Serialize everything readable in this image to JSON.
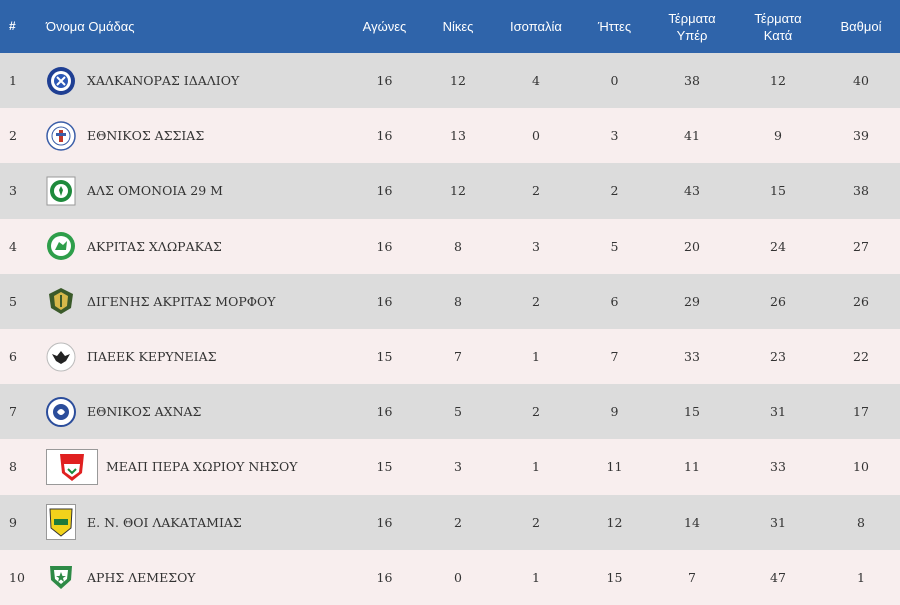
{
  "table": {
    "headers": {
      "rank": "#",
      "team": "Όνομα Ομάδας",
      "played": "Αγώνες",
      "wins": "Νίκες",
      "draws": "Ισοπαλία",
      "losses": "Ήττες",
      "goals_for_1": "Τέρματα",
      "goals_for_2": "Υπέρ",
      "goals_against_1": "Τέρματα",
      "goals_against_2": "Κατά",
      "points": "Βαθμοί"
    },
    "rows": [
      {
        "rank": "1",
        "team": "ΧΑΛΚΑΝΟΡΑΣ ΙΔΑΛΙΟΥ",
        "played": "16",
        "wins": "12",
        "draws": "4",
        "losses": "0",
        "gf": "38",
        "ga": "12",
        "pts": "40",
        "logo_icon": "chalkanoras-crest-icon"
      },
      {
        "rank": "2",
        "team": "ΕΘΝΙΚΟΣ ΑΣΣΙΑΣ",
        "played": "16",
        "wins": "13",
        "draws": "0",
        "losses": "3",
        "gf": "41",
        "ga": "9",
        "pts": "39",
        "logo_icon": "ethnikos-assias-crest-icon"
      },
      {
        "rank": "3",
        "team": "ΑΛΣ ΟΜΟΝΟΙΑ 29 Μ",
        "played": "16",
        "wins": "12",
        "draws": "2",
        "losses": "2",
        "gf": "43",
        "ga": "15",
        "pts": "38",
        "logo_icon": "omonoia-crest-icon"
      },
      {
        "rank": "4",
        "team": "ΑΚΡΙΤΑΣ ΧΛΩΡΑΚΑΣ",
        "played": "16",
        "wins": "8",
        "draws": "3",
        "losses": "5",
        "gf": "20",
        "ga": "24",
        "pts": "27",
        "logo_icon": "akritas-chlorakas-crest-icon"
      },
      {
        "rank": "5",
        "team": "ΔΙΓΕΝΗΣ ΑΚΡΙΤΑΣ ΜΟΡΦΟΥ",
        "played": "16",
        "wins": "8",
        "draws": "2",
        "losses": "6",
        "gf": "29",
        "ga": "26",
        "pts": "26",
        "logo_icon": "digenis-morfou-crest-icon"
      },
      {
        "rank": "6",
        "team": "ΠΑΕΕΚ ΚΕΡΥΝΕΙΑΣ",
        "played": "15",
        "wins": "7",
        "draws": "1",
        "losses": "7",
        "gf": "33",
        "ga": "23",
        "pts": "22",
        "logo_icon": "paeek-eagle-crest-icon"
      },
      {
        "rank": "7",
        "team": "ΕΘΝΙΚΟΣ ΑΧΝΑΣ",
        "played": "16",
        "wins": "5",
        "draws": "2",
        "losses": "9",
        "gf": "15",
        "ga": "31",
        "pts": "17",
        "logo_icon": "ethnikos-achnas-crest-icon"
      },
      {
        "rank": "8",
        "team": "ΜΕΑΠ ΠΕΡΑ ΧΩΡΙΟΥ ΝΗΣΟΥ",
        "played": "15",
        "wins": "3",
        "draws": "1",
        "losses": "11",
        "gf": "11",
        "ga": "33",
        "pts": "10",
        "logo_icon": "meap-crest-icon"
      },
      {
        "rank": "9",
        "team": "Ε. Ν. ΘΟΙ ΛΑΚΑΤΑΜΙΑΣ",
        "played": "16",
        "wins": "2",
        "draws": "2",
        "losses": "12",
        "gf": "14",
        "ga": "31",
        "pts": "8",
        "logo_icon": "thoi-crest-icon"
      },
      {
        "rank": "10",
        "team": "ΑΡΗΣ ΛΕΜΕΣΟΥ",
        "played": "16",
        "wins": "0",
        "draws": "1",
        "losses": "15",
        "gf": "7",
        "ga": "47",
        "pts": "1",
        "logo_icon": "aris-limassol-crest-icon"
      }
    ]
  },
  "colors": {
    "header_bg": "#2f64aa",
    "row_odd": "#dcdcdc",
    "row_even": "#f8eeee"
  }
}
